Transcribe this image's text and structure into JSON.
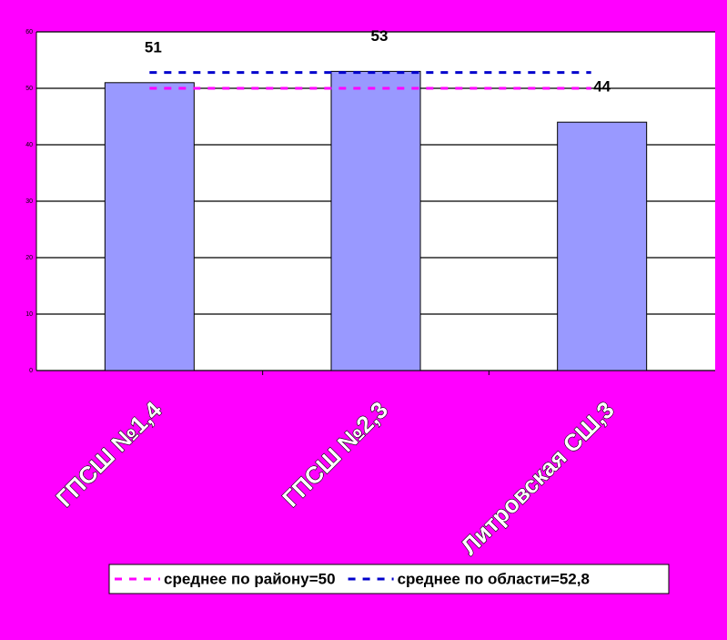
{
  "chart_data": {
    "type": "bar",
    "categories": [
      "ГПСШ №1,4",
      "ГПСШ №2,3",
      "Литровская СШ,3"
    ],
    "values": [
      51,
      53,
      44
    ],
    "color": "#9999ff",
    "ylim": [
      0,
      60
    ],
    "yticks": [
      0,
      10,
      20,
      30,
      40,
      50,
      60
    ],
    "grid": true,
    "reference_lines": [
      {
        "name": "среднее по району=50",
        "value": 50,
        "color": "#ff00ff"
      },
      {
        "name": "среднее по области=52,8",
        "value": 52.8,
        "color": "#0000cc"
      }
    ]
  }
}
